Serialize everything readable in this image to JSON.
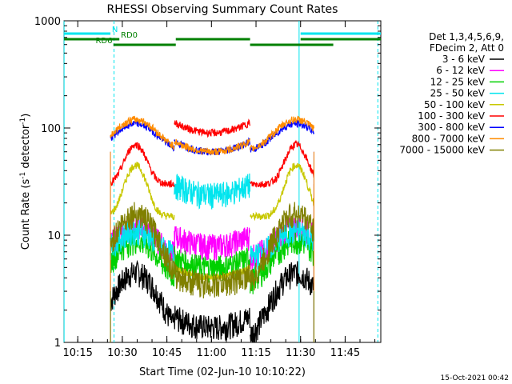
{
  "chart_data": {
    "type": "line",
    "title": "RHESSI Observing Summary Count Rates",
    "xlabel": "Start Time (02-Jun-10 10:10:22)",
    "ylabel": "Count Rate (s⁻¹ detector⁻¹)",
    "ylabel_main": "Count Rate (s",
    "ylabel_sup1": "-1",
    "ylabel_mid": " detector",
    "ylabel_sup2": "-1",
    "ylabel_end": ")",
    "y_scale": "log",
    "ylim": [
      1,
      1000
    ],
    "xlim_minutes": [
      10.17,
      12.0
    ],
    "x_ticks": [
      {
        "label": "10:15",
        "t": 15
      },
      {
        "label": "10:30",
        "t": 30
      },
      {
        "label": "10:45",
        "t": 45
      },
      {
        "label": "11:00",
        "t": 60
      },
      {
        "label": "11:15",
        "t": 75
      },
      {
        "label": "11:30",
        "t": 90
      },
      {
        "label": "11:45",
        "t": 105
      }
    ],
    "x_range_min": [
      10.37,
      117.0
    ],
    "y_ticks": [
      {
        "label": "1",
        "v": 1
      },
      {
        "label": "10",
        "v": 10
      },
      {
        "label": "100",
        "v": 100
      },
      {
        "label": "1000",
        "v": 1000
      }
    ],
    "legend_header": [
      "Det 1,3,4,5,6,9,",
      "FDecim 2, Att 0"
    ],
    "grid": false,
    "legend_position": "right",
    "timestamp": "15-Oct-2021 00:42",
    "flags": [
      {
        "name": "N",
        "color": "#00e5ee",
        "segments": [
          [
            10.4,
            26.0
          ],
          [
            90.0,
            117.0
          ]
        ],
        "level": 0
      },
      {
        "name": "RD0",
        "color": "#008000",
        "segments": [
          [
            10.4,
            29.0
          ],
          [
            48.0,
            73.0
          ],
          [
            90.0,
            117.0
          ]
        ],
        "level": 1
      },
      {
        "name": "RD6",
        "color": "#008000",
        "segments": [
          [
            27.0,
            48.0
          ],
          [
            73.0,
            101.0
          ]
        ],
        "level": 2
      }
    ],
    "markers": {
      "solid_cyan": [
        10.4,
        89.5
      ],
      "dashed_cyan": [
        27.2,
        116.0
      ]
    },
    "data_window_min": [
      [
        26.0,
        47.5
      ],
      [
        47.5,
        73.0
      ],
      [
        73.0,
        94.5
      ]
    ],
    "series": [
      {
        "name": "3 - 6 keV",
        "color": "#000000",
        "shape": "hump",
        "peak": 4.5,
        "base": 1.0,
        "gap": 1.4
      },
      {
        "name": "6 - 12 keV",
        "color": "#ff00ff",
        "shape": "hump",
        "peak": 12,
        "base": 6,
        "gap": 8
      },
      {
        "name": "12 - 25 keV",
        "color": "#00d000",
        "shape": "hump",
        "peak": 9,
        "base": 3.5,
        "gap": 5
      },
      {
        "name": "25 - 50 keV",
        "color": "#00e5ee",
        "shape": "hump",
        "peak": 11,
        "base": 6,
        "gap": 24
      },
      {
        "name": "50 - 100 keV",
        "color": "#c8c800",
        "shape": "peak",
        "peak": 45,
        "base": 15,
        "gap": 4
      },
      {
        "name": "100 - 300 keV",
        "color": "#ff0000",
        "shape": "peak",
        "peak": 70,
        "base": 30,
        "gap": 90
      },
      {
        "name": "300 - 800 keV",
        "color": "#0000ff",
        "shape": "hump",
        "peak": 110,
        "base": 60,
        "gap": 60
      },
      {
        "name": "800 - 7000 keV",
        "color": "#ff8c00",
        "shape": "hump",
        "peak": 120,
        "base": 60,
        "gap": 60
      },
      {
        "name": "7000 - 15000 keV",
        "color": "#808000",
        "shape": "hump",
        "peak": 16,
        "base": 3,
        "gap": 3.5
      }
    ]
  }
}
